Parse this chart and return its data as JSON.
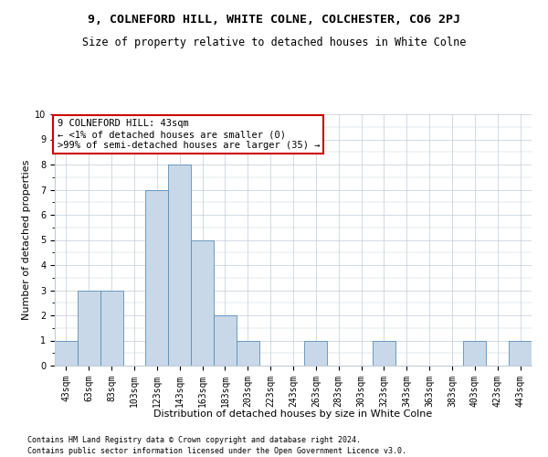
{
  "title1": "9, COLNEFORD HILL, WHITE COLNE, COLCHESTER, CO6 2PJ",
  "title2": "Size of property relative to detached houses in White Colne",
  "xlabel": "Distribution of detached houses by size in White Colne",
  "ylabel": "Number of detached properties",
  "footer1": "Contains HM Land Registry data © Crown copyright and database right 2024.",
  "footer2": "Contains public sector information licensed under the Open Government Licence v3.0.",
  "categories": [
    "43sqm",
    "63sqm",
    "83sqm",
    "103sqm",
    "123sqm",
    "143sqm",
    "163sqm",
    "183sqm",
    "203sqm",
    "223sqm",
    "243sqm",
    "263sqm",
    "283sqm",
    "303sqm",
    "323sqm",
    "343sqm",
    "363sqm",
    "383sqm",
    "403sqm",
    "423sqm",
    "443sqm"
  ],
  "values": [
    1,
    3,
    3,
    0,
    7,
    8,
    5,
    2,
    1,
    0,
    0,
    1,
    0,
    0,
    1,
    0,
    0,
    0,
    1,
    0,
    1
  ],
  "bar_color": "#c8d8e8",
  "bar_edge_color": "#5b8db8",
  "annotation_box_color": "#ffffff",
  "annotation_border_color": "#cc0000",
  "annotation_text_line1": "9 COLNEFORD HILL: 43sqm",
  "annotation_text_line2": "← <1% of detached houses are smaller (0)",
  "annotation_text_line3": ">99% of semi-detached houses are larger (35) →",
  "ylim": [
    0,
    10
  ],
  "yticks": [
    0,
    1,
    2,
    3,
    4,
    5,
    6,
    7,
    8,
    9,
    10
  ],
  "background_color": "#ffffff",
  "grid_color": "#c0ccd8",
  "title1_fontsize": 9.5,
  "title2_fontsize": 8.5,
  "xlabel_fontsize": 8,
  "ylabel_fontsize": 8,
  "tick_fontsize": 7,
  "annotation_fontsize": 7.5,
  "footer_fontsize": 6
}
